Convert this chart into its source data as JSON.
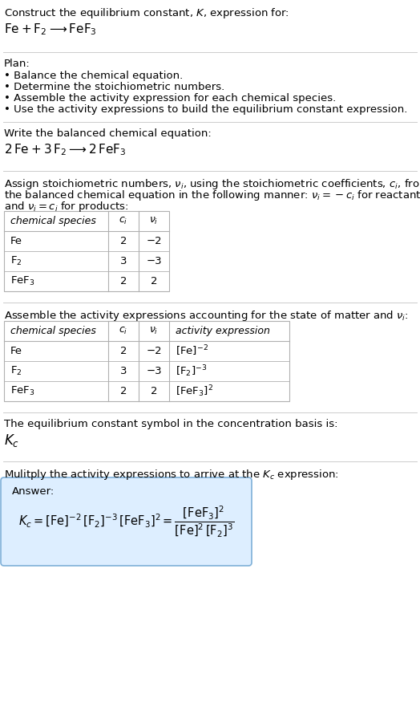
{
  "title_line1": "Construct the equilibrium constant, $K$, expression for:",
  "title_line2": "$\\mathrm{Fe} + \\mathrm{F_2} \\longrightarrow \\mathrm{FeF_3}$",
  "plan_header": "Plan:",
  "plan_items": [
    "• Balance the chemical equation.",
    "• Determine the stoichiometric numbers.",
    "• Assemble the activity expression for each chemical species.",
    "• Use the activity expressions to build the equilibrium constant expression."
  ],
  "balanced_header": "Write the balanced chemical equation:",
  "balanced_eq": "$2\\,\\mathrm{Fe} + 3\\,\\mathrm{F_2} \\longrightarrow 2\\,\\mathrm{FeF_3}$",
  "stoich_intro1": "Assign stoichiometric numbers, $\\nu_i$, using the stoichiometric coefficients, $c_i$, from",
  "stoich_intro2": "the balanced chemical equation in the following manner: $\\nu_i = -c_i$ for reactants",
  "stoich_intro3": "and $\\nu_i = c_i$ for products:",
  "table1_headers": [
    "chemical species",
    "$c_i$",
    "$\\nu_i$"
  ],
  "table1_rows": [
    [
      "Fe",
      "2",
      "−2"
    ],
    [
      "$\\mathrm{F_2}$",
      "3",
      "−3"
    ],
    [
      "$\\mathrm{FeF_3}$",
      "2",
      "2"
    ]
  ],
  "activity_intro": "Assemble the activity expressions accounting for the state of matter and $\\nu_i$:",
  "table2_headers": [
    "chemical species",
    "$c_i$",
    "$\\nu_i$",
    "activity expression"
  ],
  "table2_rows": [
    [
      "Fe",
      "2",
      "−2",
      "$[\\mathrm{Fe}]^{-2}$"
    ],
    [
      "$\\mathrm{F_2}$",
      "3",
      "−3",
      "$[\\mathrm{F_2}]^{-3}$"
    ],
    [
      "$\\mathrm{FeF_3}$",
      "2",
      "2",
      "$[\\mathrm{FeF_3}]^{2}$"
    ]
  ],
  "kc_label": "The equilibrium constant symbol in the concentration basis is:",
  "kc_symbol": "$K_c$",
  "multiply_text": "Mulitply the activity expressions to arrive at the $K_c$ expression:",
  "answer_label": "Answer:",
  "answer_eq": "$K_c = [\\mathrm{Fe}]^{-2}\\,[\\mathrm{F_2}]^{-3}\\,[\\mathrm{FeF_3}]^{2} = \\dfrac{[\\mathrm{FeF_3}]^{2}}{[\\mathrm{Fe}]^{2}\\,[\\mathrm{F_2}]^{3}}$",
  "answer_box_color": "#ddeeff",
  "answer_box_edge": "#7fb0d8",
  "bg_color": "#ffffff",
  "text_color": "#000000",
  "table_line_color": "#b0b0b0",
  "sep_line_color": "#cccccc",
  "font_size": 9.5,
  "fig_w": 5.24,
  "fig_h": 9.01,
  "dpi": 100
}
